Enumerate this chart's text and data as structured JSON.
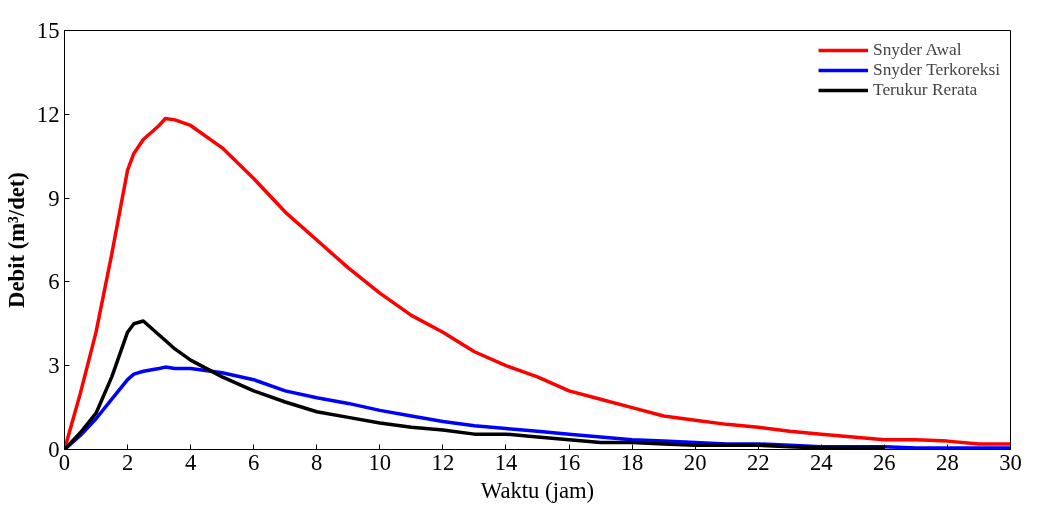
{
  "chart_data": {
    "type": "line",
    "xlabel": "Waktu (jam)",
    "ylabel": "Debit (m³/det)",
    "xlim": [
      0,
      30
    ],
    "ylim": [
      0,
      15
    ],
    "xticks": [
      0,
      2,
      4,
      6,
      8,
      10,
      12,
      14,
      16,
      18,
      20,
      22,
      24,
      26,
      28,
      30
    ],
    "yticks": [
      0,
      3,
      6,
      9,
      12,
      15
    ],
    "grid": false,
    "legend": "top right",
    "marker": "none",
    "line_style": "solid",
    "x": [
      0,
      0.5,
      1,
      1.5,
      2,
      2.2,
      2.5,
      3,
      3.2,
      3.5,
      4,
      5,
      6,
      7,
      8,
      9,
      10,
      11,
      12,
      13,
      14,
      15,
      16,
      17,
      18,
      19,
      20,
      21,
      22,
      23,
      24,
      25,
      26,
      27,
      28,
      29,
      30
    ],
    "series": [
      {
        "name": "Snyder Awal",
        "color": "#ff0000",
        "values": [
          0,
          2,
          4.2,
          7,
          10,
          10.6,
          11.1,
          11.6,
          11.85,
          11.8,
          11.6,
          10.8,
          9.7,
          8.5,
          7.5,
          6.5,
          5.6,
          4.8,
          4.2,
          3.5,
          3,
          2.6,
          2.1,
          1.8,
          1.5,
          1.2,
          1.05,
          0.9,
          0.8,
          0.65,
          0.55,
          0.45,
          0.35,
          0.35,
          0.3,
          0.2,
          0.2
        ]
      },
      {
        "name": "Snyder Terkoreksi",
        "color": "#0000ff",
        "values": [
          0,
          0.5,
          1.1,
          1.8,
          2.5,
          2.7,
          2.8,
          2.9,
          2.95,
          2.9,
          2.9,
          2.75,
          2.5,
          2.1,
          1.85,
          1.65,
          1.4,
          1.2,
          1,
          0.85,
          0.75,
          0.65,
          0.55,
          0.45,
          0.35,
          0.3,
          0.25,
          0.2,
          0.2,
          0.15,
          0.1,
          0.1,
          0.1,
          0.05,
          0.05,
          0.05,
          0.05
        ]
      },
      {
        "name": "Terukur Rerata",
        "color": "#000000",
        "x": [
          0,
          0.5,
          1,
          1.5,
          2,
          2.2,
          2.5,
          3,
          3.2,
          3.5,
          4,
          5,
          6,
          7,
          8,
          9,
          10,
          11,
          12,
          13,
          14,
          15,
          16,
          17,
          18,
          19,
          20,
          21,
          22,
          23,
          24,
          25,
          26
        ],
        "values": [
          0,
          0.6,
          1.3,
          2.6,
          4.2,
          4.5,
          4.6,
          4.1,
          3.9,
          3.6,
          3.2,
          2.6,
          2.1,
          1.7,
          1.35,
          1.15,
          0.95,
          0.8,
          0.7,
          0.55,
          0.55,
          0.45,
          0.35,
          0.25,
          0.25,
          0.2,
          0.15,
          0.15,
          0.15,
          0.1,
          0.05,
          0.05,
          0.05
        ]
      }
    ]
  }
}
